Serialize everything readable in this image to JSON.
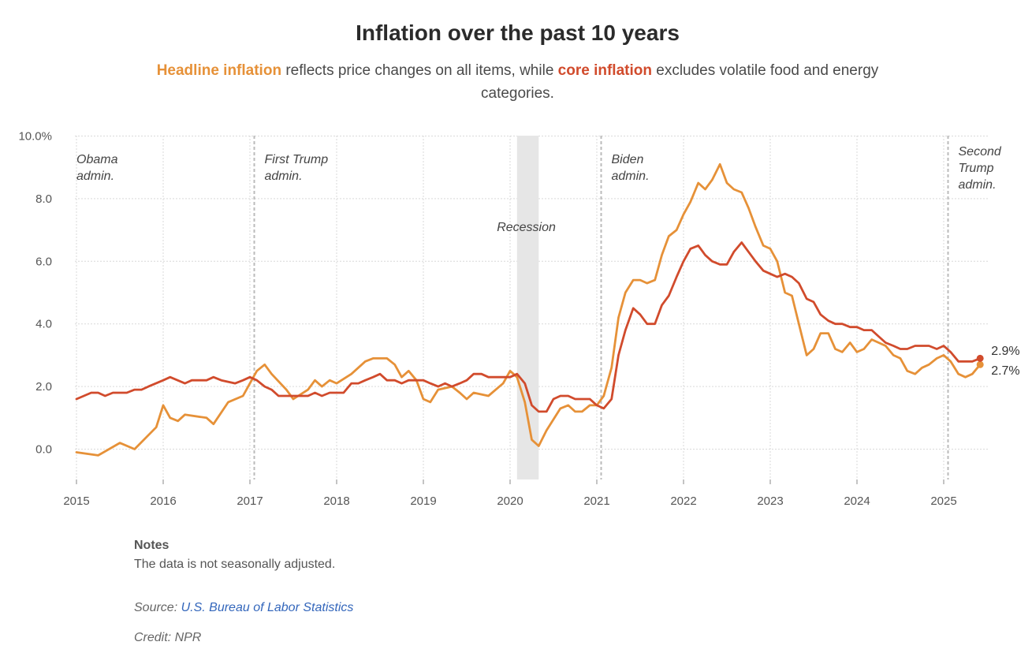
{
  "title": "Inflation over the past 10 years",
  "subtitle": {
    "headline_term": "Headline inflation",
    "middle": " reflects price changes on all items, while ",
    "core_term": "core inflation",
    "end": " excludes volatile food and energy categories."
  },
  "colors": {
    "headline": "#E69138",
    "core": "#D14B2C",
    "recession_band": "#e6e6e6",
    "grid": "#d9d9d9",
    "era_line": "#bbbbbb",
    "link": "#3366bb"
  },
  "notes": {
    "heading": "Notes",
    "text": "The data is not seasonally adjusted."
  },
  "source": {
    "prefix": "Source: ",
    "link_text": "U.S. Bureau of Labor Statistics"
  },
  "credit": "Credit: NPR",
  "chart_data": {
    "type": "line",
    "title": "Inflation over the past 10 years",
    "x_unit": "decimal year",
    "xlim": [
      2015.0,
      2025.5
    ],
    "ylim": [
      -1.0,
      10.0
    ],
    "y_ticks": [
      0,
      2,
      4,
      6,
      8,
      10
    ],
    "y_tick_labels": [
      "0.0",
      "2.0",
      "4.0",
      "6.0",
      "8.0",
      "10.0%"
    ],
    "x_ticks": [
      2015,
      2016,
      2017,
      2018,
      2019,
      2020,
      2021,
      2022,
      2023,
      2024,
      2025
    ],
    "x_tick_labels": [
      "2015",
      "2016",
      "2017",
      "2018",
      "2019",
      "2020",
      "2021",
      "2022",
      "2023",
      "2024",
      "2025"
    ],
    "grid": true,
    "series": [
      {
        "name": "Headline inflation",
        "color": "#E69138",
        "end_label": "2.7%",
        "points": [
          [
            2015.0,
            -0.1
          ],
          [
            2015.25,
            -0.2
          ],
          [
            2015.5,
            0.2
          ],
          [
            2015.67,
            0.0
          ],
          [
            2015.92,
            0.7
          ],
          [
            2016.0,
            1.4
          ],
          [
            2016.08,
            1.0
          ],
          [
            2016.17,
            0.9
          ],
          [
            2016.25,
            1.1
          ],
          [
            2016.5,
            1.0
          ],
          [
            2016.58,
            0.8
          ],
          [
            2016.75,
            1.5
          ],
          [
            2016.92,
            1.7
          ],
          [
            2017.0,
            2.1
          ],
          [
            2017.08,
            2.5
          ],
          [
            2017.17,
            2.7
          ],
          [
            2017.25,
            2.4
          ],
          [
            2017.42,
            1.9
          ],
          [
            2017.5,
            1.6
          ],
          [
            2017.67,
            1.9
          ],
          [
            2017.75,
            2.2
          ],
          [
            2017.83,
            2.0
          ],
          [
            2017.92,
            2.2
          ],
          [
            2018.0,
            2.1
          ],
          [
            2018.17,
            2.4
          ],
          [
            2018.33,
            2.8
          ],
          [
            2018.42,
            2.9
          ],
          [
            2018.58,
            2.9
          ],
          [
            2018.67,
            2.7
          ],
          [
            2018.75,
            2.3
          ],
          [
            2018.83,
            2.5
          ],
          [
            2018.92,
            2.2
          ],
          [
            2019.0,
            1.6
          ],
          [
            2019.08,
            1.5
          ],
          [
            2019.17,
            1.9
          ],
          [
            2019.33,
            2.0
          ],
          [
            2019.42,
            1.8
          ],
          [
            2019.5,
            1.6
          ],
          [
            2019.58,
            1.8
          ],
          [
            2019.75,
            1.7
          ],
          [
            2019.92,
            2.1
          ],
          [
            2020.0,
            2.5
          ],
          [
            2020.08,
            2.3
          ],
          [
            2020.17,
            1.5
          ],
          [
            2020.25,
            0.3
          ],
          [
            2020.33,
            0.1
          ],
          [
            2020.42,
            0.6
          ],
          [
            2020.58,
            1.3
          ],
          [
            2020.67,
            1.4
          ],
          [
            2020.75,
            1.2
          ],
          [
            2020.83,
            1.2
          ],
          [
            2020.92,
            1.4
          ],
          [
            2021.0,
            1.4
          ],
          [
            2021.08,
            1.7
          ],
          [
            2021.17,
            2.6
          ],
          [
            2021.25,
            4.2
          ],
          [
            2021.33,
            5.0
          ],
          [
            2021.42,
            5.4
          ],
          [
            2021.5,
            5.4
          ],
          [
            2021.58,
            5.3
          ],
          [
            2021.67,
            5.4
          ],
          [
            2021.75,
            6.2
          ],
          [
            2021.83,
            6.8
          ],
          [
            2021.92,
            7.0
          ],
          [
            2022.0,
            7.5
          ],
          [
            2022.08,
            7.9
          ],
          [
            2022.17,
            8.5
          ],
          [
            2022.25,
            8.3
          ],
          [
            2022.33,
            8.6
          ],
          [
            2022.42,
            9.1
          ],
          [
            2022.5,
            8.5
          ],
          [
            2022.58,
            8.3
          ],
          [
            2022.67,
            8.2
          ],
          [
            2022.75,
            7.7
          ],
          [
            2022.83,
            7.1
          ],
          [
            2022.92,
            6.5
          ],
          [
            2023.0,
            6.4
          ],
          [
            2023.08,
            6.0
          ],
          [
            2023.17,
            5.0
          ],
          [
            2023.25,
            4.9
          ],
          [
            2023.33,
            4.0
          ],
          [
            2023.42,
            3.0
          ],
          [
            2023.5,
            3.2
          ],
          [
            2023.58,
            3.7
          ],
          [
            2023.67,
            3.7
          ],
          [
            2023.75,
            3.2
          ],
          [
            2023.83,
            3.1
          ],
          [
            2023.92,
            3.4
          ],
          [
            2024.0,
            3.1
          ],
          [
            2024.08,
            3.2
          ],
          [
            2024.17,
            3.5
          ],
          [
            2024.25,
            3.4
          ],
          [
            2024.33,
            3.3
          ],
          [
            2024.42,
            3.0
          ],
          [
            2024.5,
            2.9
          ],
          [
            2024.58,
            2.5
          ],
          [
            2024.67,
            2.4
          ],
          [
            2024.75,
            2.6
          ],
          [
            2024.83,
            2.7
          ],
          [
            2024.92,
            2.9
          ],
          [
            2025.0,
            3.0
          ],
          [
            2025.08,
            2.8
          ],
          [
            2025.17,
            2.4
          ],
          [
            2025.25,
            2.3
          ],
          [
            2025.33,
            2.4
          ],
          [
            2025.42,
            2.7
          ]
        ]
      },
      {
        "name": "Core inflation",
        "color": "#D14B2C",
        "end_label": "2.9%",
        "points": [
          [
            2015.0,
            1.6
          ],
          [
            2015.17,
            1.8
          ],
          [
            2015.25,
            1.8
          ],
          [
            2015.33,
            1.7
          ],
          [
            2015.42,
            1.8
          ],
          [
            2015.58,
            1.8
          ],
          [
            2015.67,
            1.9
          ],
          [
            2015.75,
            1.9
          ],
          [
            2015.83,
            2.0
          ],
          [
            2016.0,
            2.2
          ],
          [
            2016.08,
            2.3
          ],
          [
            2016.25,
            2.1
          ],
          [
            2016.33,
            2.2
          ],
          [
            2016.5,
            2.2
          ],
          [
            2016.58,
            2.3
          ],
          [
            2016.67,
            2.2
          ],
          [
            2016.83,
            2.1
          ],
          [
            2016.92,
            2.2
          ],
          [
            2017.0,
            2.3
          ],
          [
            2017.08,
            2.2
          ],
          [
            2017.17,
            2.0
          ],
          [
            2017.25,
            1.9
          ],
          [
            2017.33,
            1.7
          ],
          [
            2017.5,
            1.7
          ],
          [
            2017.58,
            1.7
          ],
          [
            2017.67,
            1.7
          ],
          [
            2017.75,
            1.8
          ],
          [
            2017.83,
            1.7
          ],
          [
            2017.92,
            1.8
          ],
          [
            2018.0,
            1.8
          ],
          [
            2018.08,
            1.8
          ],
          [
            2018.17,
            2.1
          ],
          [
            2018.25,
            2.1
          ],
          [
            2018.33,
            2.2
          ],
          [
            2018.42,
            2.3
          ],
          [
            2018.5,
            2.4
          ],
          [
            2018.58,
            2.2
          ],
          [
            2018.67,
            2.2
          ],
          [
            2018.75,
            2.1
          ],
          [
            2018.83,
            2.2
          ],
          [
            2018.92,
            2.2
          ],
          [
            2019.0,
            2.2
          ],
          [
            2019.08,
            2.1
          ],
          [
            2019.17,
            2.0
          ],
          [
            2019.25,
            2.1
          ],
          [
            2019.33,
            2.0
          ],
          [
            2019.42,
            2.1
          ],
          [
            2019.5,
            2.2
          ],
          [
            2019.58,
            2.4
          ],
          [
            2019.67,
            2.4
          ],
          [
            2019.75,
            2.3
          ],
          [
            2019.83,
            2.3
          ],
          [
            2019.92,
            2.3
          ],
          [
            2020.0,
            2.3
          ],
          [
            2020.08,
            2.4
          ],
          [
            2020.17,
            2.1
          ],
          [
            2020.25,
            1.4
          ],
          [
            2020.33,
            1.2
          ],
          [
            2020.42,
            1.2
          ],
          [
            2020.5,
            1.6
          ],
          [
            2020.58,
            1.7
          ],
          [
            2020.67,
            1.7
          ],
          [
            2020.75,
            1.6
          ],
          [
            2020.83,
            1.6
          ],
          [
            2020.92,
            1.6
          ],
          [
            2021.0,
            1.4
          ],
          [
            2021.08,
            1.3
          ],
          [
            2021.17,
            1.6
          ],
          [
            2021.25,
            3.0
          ],
          [
            2021.33,
            3.8
          ],
          [
            2021.42,
            4.5
          ],
          [
            2021.5,
            4.3
          ],
          [
            2021.58,
            4.0
          ],
          [
            2021.67,
            4.0
          ],
          [
            2021.75,
            4.6
          ],
          [
            2021.83,
            4.9
          ],
          [
            2021.92,
            5.5
          ],
          [
            2022.0,
            6.0
          ],
          [
            2022.08,
            6.4
          ],
          [
            2022.17,
            6.5
          ],
          [
            2022.25,
            6.2
          ],
          [
            2022.33,
            6.0
          ],
          [
            2022.42,
            5.9
          ],
          [
            2022.5,
            5.9
          ],
          [
            2022.58,
            6.3
          ],
          [
            2022.67,
            6.6
          ],
          [
            2022.75,
            6.3
          ],
          [
            2022.83,
            6.0
          ],
          [
            2022.92,
            5.7
          ],
          [
            2023.0,
            5.6
          ],
          [
            2023.08,
            5.5
          ],
          [
            2023.17,
            5.6
          ],
          [
            2023.25,
            5.5
          ],
          [
            2023.33,
            5.3
          ],
          [
            2023.42,
            4.8
          ],
          [
            2023.5,
            4.7
          ],
          [
            2023.58,
            4.3
          ],
          [
            2023.67,
            4.1
          ],
          [
            2023.75,
            4.0
          ],
          [
            2023.83,
            4.0
          ],
          [
            2023.92,
            3.9
          ],
          [
            2024.0,
            3.9
          ],
          [
            2024.08,
            3.8
          ],
          [
            2024.17,
            3.8
          ],
          [
            2024.25,
            3.6
          ],
          [
            2024.33,
            3.4
          ],
          [
            2024.42,
            3.3
          ],
          [
            2024.5,
            3.2
          ],
          [
            2024.58,
            3.2
          ],
          [
            2024.67,
            3.3
          ],
          [
            2024.75,
            3.3
          ],
          [
            2024.83,
            3.3
          ],
          [
            2024.92,
            3.2
          ],
          [
            2025.0,
            3.3
          ],
          [
            2025.08,
            3.1
          ],
          [
            2025.17,
            2.8
          ],
          [
            2025.25,
            2.8
          ],
          [
            2025.33,
            2.8
          ],
          [
            2025.42,
            2.9
          ]
        ]
      }
    ],
    "recession": {
      "label": "Recession",
      "start": 2020.08,
      "end": 2020.33
    },
    "administrations": [
      {
        "label_lines": [
          "Obama",
          "admin."
        ],
        "start": 2015.0,
        "boundary": false
      },
      {
        "label_lines": [
          "First Trump",
          "admin."
        ],
        "start": 2017.05,
        "boundary": true
      },
      {
        "label_lines": [
          "Biden",
          "admin."
        ],
        "start": 2021.05,
        "boundary": true
      },
      {
        "label_lines": [
          "Second",
          "Trump",
          "admin."
        ],
        "start": 2025.05,
        "boundary": true
      }
    ]
  }
}
